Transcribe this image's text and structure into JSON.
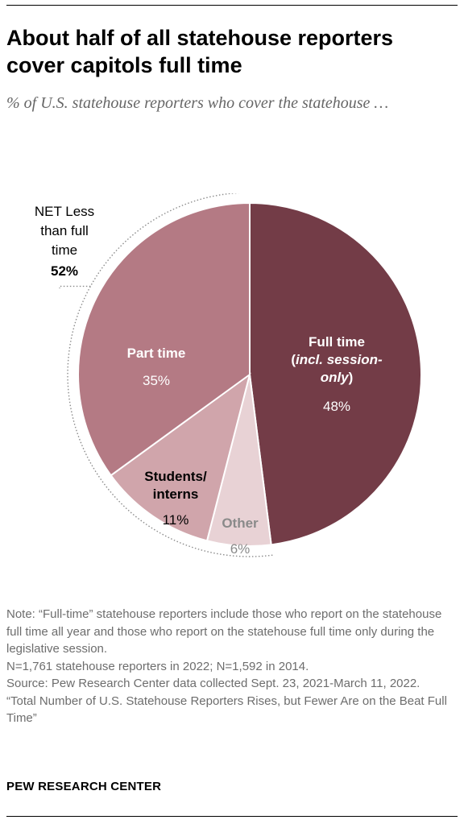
{
  "header": {
    "title": "About half of all statehouse reporters cover capitols full time",
    "subtitle": "% of U.S. statehouse reporters who cover the statehouse …"
  },
  "chart_data": {
    "type": "pie",
    "start_angle_deg": 0,
    "direction": "clockwise",
    "slices": [
      {
        "key": "full_time",
        "label_lines": [
          "Full time",
          "(incl. session-",
          "only)"
        ],
        "value": 48,
        "value_label": "48%",
        "color": "#733c47",
        "label_color": "#ffffff",
        "value_color": "#ffffff"
      },
      {
        "key": "other",
        "label_lines": [
          "Other"
        ],
        "value": 6,
        "value_label": "6%",
        "color": "#e8d2d5",
        "label_color": "#8a8a8a",
        "value_color": "#8a8a8a"
      },
      {
        "key": "students_interns",
        "label_lines": [
          "Students/",
          "interns"
        ],
        "value": 11,
        "value_label": "11%",
        "color": "#d0a5ab",
        "label_color": "#000000",
        "value_color": "#000000"
      },
      {
        "key": "part_time",
        "label_lines": [
          "Part time"
        ],
        "value": 35,
        "value_label": "35%",
        "color": "#b47a84",
        "label_color": "#ffffff",
        "value_color": "#ffffff"
      }
    ],
    "net_annotation": {
      "label_lines": [
        "NET Less",
        "than full",
        "time"
      ],
      "value_label": "52%"
    }
  },
  "footer": {
    "notes": [
      "Note: “Full-time” statehouse reporters include those who report on the statehouse full time all year and those who report on the statehouse full time only during the legislative session.",
      "N=1,761 statehouse reporters in 2022; N=1,592 in 2014.",
      "Source: Pew Research Center data collected Sept. 23, 2021-March 11, 2022.",
      "“Total Number of U.S. Statehouse Reporters Rises, but Fewer Are on the Beat Full Time”"
    ],
    "brand": "PEW RESEARCH CENTER"
  }
}
